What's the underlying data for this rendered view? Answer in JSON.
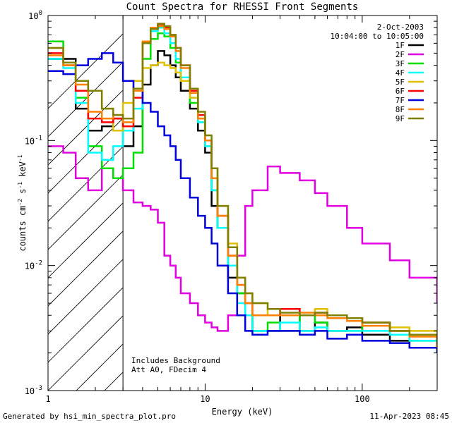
{
  "chart_data": {
    "type": "line",
    "title": "Count Spectra for RHESSI Front Segments",
    "xlabel": "Energy (keV)",
    "ylabel_main": "counts cm",
    "ylabel_exp1": "-2",
    "ylabel_s": " s",
    "ylabel_exp2": "-1",
    "ylabel_kev": " keV",
    "ylabel_exp3": "-1",
    "x_scale": "log",
    "y_scale": "log",
    "xlim": [
      1,
      300
    ],
    "ylim": [
      0.001,
      1
    ],
    "x_ticks": [
      {
        "value": 1,
        "label": "1"
      },
      {
        "value": 10,
        "label": "10"
      },
      {
        "value": 100,
        "label": "100"
      }
    ],
    "y_ticks": [
      {
        "value": 1,
        "base": "10",
        "exp": "0"
      },
      {
        "value": 0.1,
        "base": "10",
        "exp": "-1"
      },
      {
        "value": 0.01,
        "base": "10",
        "exp": "-2"
      },
      {
        "value": 0.001,
        "base": "10",
        "exp": "-3"
      }
    ],
    "hatch_region_kev": [
      1,
      3
    ],
    "legend": {
      "position": "top-right",
      "date": "2-Oct-2003",
      "time_range": "10:04:00 to 10:05:00"
    },
    "annotations": [
      "Includes Background",
      "Att A0, FDecim 4"
    ],
    "series": [
      {
        "name": "1F",
        "color": "#000000",
        "x": [
          1,
          1.25,
          1.5,
          1.8,
          2.2,
          2.6,
          3,
          3.5,
          4,
          4.5,
          5,
          5.5,
          6,
          6.5,
          7,
          8,
          9,
          10,
          11,
          12,
          14,
          16,
          18,
          20,
          25,
          30,
          40,
          50,
          60,
          80,
          100,
          150,
          200,
          300
        ],
        "y": [
          0.45,
          0.45,
          0.18,
          0.12,
          0.13,
          0.15,
          0.09,
          0.13,
          0.28,
          0.4,
          0.52,
          0.48,
          0.4,
          0.32,
          0.25,
          0.18,
          0.12,
          0.08,
          0.03,
          0.02,
          0.008,
          0.006,
          0.004,
          0.003,
          0.003,
          0.004,
          0.003,
          0.0035,
          0.003,
          0.0032,
          0.0028,
          0.0025,
          0.0022,
          0.002
        ]
      },
      {
        "name": "2F",
        "color": "#e000e0",
        "x": [
          1,
          1.25,
          1.5,
          1.8,
          2.2,
          2.6,
          3,
          3.5,
          4,
          4.5,
          5,
          5.5,
          6,
          6.5,
          7,
          8,
          9,
          10,
          11,
          12,
          14,
          16,
          18,
          20,
          25,
          30,
          40,
          50,
          60,
          80,
          100,
          150,
          200,
          300
        ],
        "y": [
          0.09,
          0.08,
          0.05,
          0.04,
          0.06,
          0.05,
          0.04,
          0.032,
          0.03,
          0.028,
          0.022,
          0.012,
          0.01,
          0.008,
          0.006,
          0.005,
          0.004,
          0.0035,
          0.0032,
          0.003,
          0.004,
          0.012,
          0.03,
          0.04,
          0.062,
          0.055,
          0.048,
          0.038,
          0.03,
          0.02,
          0.015,
          0.011,
          0.008,
          0.005
        ]
      },
      {
        "name": "3F",
        "color": "#00e000",
        "x": [
          1,
          1.25,
          1.5,
          1.8,
          2.2,
          2.6,
          3,
          3.5,
          4,
          4.5,
          5,
          5.5,
          6,
          6.5,
          7,
          8,
          9,
          10,
          11,
          12,
          14,
          16,
          18,
          20,
          25,
          30,
          40,
          50,
          60,
          80,
          100,
          150,
          200,
          300
        ],
        "y": [
          0.62,
          0.42,
          0.22,
          0.09,
          0.06,
          0.05,
          0.06,
          0.08,
          0.45,
          0.65,
          0.72,
          0.68,
          0.55,
          0.42,
          0.3,
          0.2,
          0.14,
          0.09,
          0.04,
          0.02,
          0.01,
          0.006,
          0.004,
          0.003,
          0.0035,
          0.003,
          0.004,
          0.0035,
          0.003,
          0.003,
          0.0035,
          0.003,
          0.0025,
          0.002
        ]
      },
      {
        "name": "4F",
        "color": "#00ffff",
        "x": [
          1,
          1.25,
          1.5,
          1.8,
          2.2,
          2.6,
          3,
          3.5,
          4,
          4.5,
          5,
          5.5,
          6,
          6.5,
          7,
          8,
          9,
          10,
          11,
          12,
          14,
          16,
          18,
          20,
          25,
          30,
          40,
          50,
          60,
          80,
          100,
          150,
          200,
          300
        ],
        "y": [
          0.45,
          0.38,
          0.2,
          0.08,
          0.07,
          0.09,
          0.12,
          0.18,
          0.6,
          0.75,
          0.8,
          0.72,
          0.6,
          0.45,
          0.32,
          0.22,
          0.14,
          0.09,
          0.04,
          0.02,
          0.01,
          0.005,
          0.004,
          0.003,
          0.003,
          0.0035,
          0.003,
          0.0032,
          0.003,
          0.003,
          0.003,
          0.0028,
          0.0025,
          0.002
        ]
      },
      {
        "name": "5F",
        "color": "#e0c000",
        "x": [
          1,
          1.25,
          1.5,
          1.8,
          2.2,
          2.6,
          3,
          3.5,
          4,
          4.5,
          5,
          5.5,
          6,
          6.5,
          7,
          8,
          9,
          10,
          11,
          12,
          14,
          16,
          18,
          20,
          25,
          30,
          40,
          50,
          60,
          80,
          100,
          150,
          200,
          300
        ],
        "y": [
          0.55,
          0.4,
          0.3,
          0.25,
          0.18,
          0.12,
          0.2,
          0.3,
          0.38,
          0.4,
          0.42,
          0.4,
          0.38,
          0.35,
          0.3,
          0.22,
          0.15,
          0.1,
          0.06,
          0.03,
          0.015,
          0.008,
          0.006,
          0.005,
          0.004,
          0.0045,
          0.004,
          0.0045,
          0.004,
          0.0038,
          0.0035,
          0.0032,
          0.003,
          0.0025
        ]
      },
      {
        "name": "6F",
        "color": "#ff0000",
        "x": [
          1,
          1.25,
          1.5,
          1.8,
          2.2,
          2.6,
          3,
          3.5,
          4,
          4.5,
          5,
          5.5,
          6,
          6.5,
          7,
          8,
          9,
          10,
          11,
          12,
          14,
          16,
          18,
          20,
          25,
          30,
          40,
          50,
          60,
          80,
          100,
          150,
          200,
          300
        ],
        "y": [
          0.5,
          0.4,
          0.25,
          0.15,
          0.14,
          0.15,
          0.13,
          0.22,
          0.6,
          0.78,
          0.85,
          0.8,
          0.7,
          0.55,
          0.4,
          0.25,
          0.16,
          0.1,
          0.05,
          0.025,
          0.012,
          0.007,
          0.005,
          0.004,
          0.004,
          0.0045,
          0.004,
          0.0042,
          0.004,
          0.0038,
          0.0035,
          0.003,
          0.0028,
          0.0022
        ]
      },
      {
        "name": "7F",
        "color": "#0000dd",
        "x": [
          1,
          1.25,
          1.5,
          1.8,
          2.2,
          2.6,
          3,
          3.5,
          4,
          4.5,
          5,
          5.5,
          6,
          6.5,
          7,
          8,
          9,
          10,
          11,
          12,
          14,
          16,
          18,
          20,
          25,
          30,
          40,
          50,
          60,
          80,
          100,
          150,
          200,
          300
        ],
        "y": [
          0.36,
          0.34,
          0.4,
          0.45,
          0.5,
          0.42,
          0.3,
          0.25,
          0.2,
          0.17,
          0.13,
          0.11,
          0.09,
          0.07,
          0.05,
          0.035,
          0.025,
          0.02,
          0.015,
          0.01,
          0.006,
          0.004,
          0.003,
          0.0028,
          0.003,
          0.003,
          0.0028,
          0.003,
          0.0026,
          0.0028,
          0.0025,
          0.0024,
          0.0022,
          0.002
        ]
      },
      {
        "name": "8F",
        "color": "#ff8000",
        "x": [
          1,
          1.25,
          1.5,
          1.8,
          2.2,
          2.6,
          3,
          3.5,
          4,
          4.5,
          5,
          5.5,
          6,
          6.5,
          7,
          8,
          9,
          10,
          11,
          12,
          14,
          16,
          18,
          20,
          25,
          30,
          40,
          50,
          60,
          80,
          100,
          150,
          200,
          300
        ],
        "y": [
          0.48,
          0.4,
          0.28,
          0.17,
          0.15,
          0.16,
          0.14,
          0.25,
          0.62,
          0.8,
          0.82,
          0.78,
          0.68,
          0.52,
          0.38,
          0.24,
          0.15,
          0.1,
          0.05,
          0.025,
          0.012,
          0.007,
          0.005,
          0.004,
          0.004,
          0.004,
          0.0042,
          0.004,
          0.0038,
          0.0036,
          0.0033,
          0.003,
          0.0027,
          0.0022
        ]
      },
      {
        "name": "9F",
        "color": "#808000",
        "x": [
          1,
          1.25,
          1.5,
          1.8,
          2.2,
          2.6,
          3,
          3.5,
          4,
          4.5,
          5,
          5.5,
          6,
          6.5,
          7,
          8,
          9,
          10,
          11,
          12,
          14,
          16,
          18,
          20,
          25,
          30,
          40,
          50,
          60,
          80,
          100,
          150,
          200,
          300
        ],
        "y": [
          0.55,
          0.42,
          0.3,
          0.25,
          0.18,
          0.16,
          0.15,
          0.26,
          0.6,
          0.78,
          0.86,
          0.82,
          0.7,
          0.55,
          0.4,
          0.26,
          0.17,
          0.11,
          0.06,
          0.03,
          0.014,
          0.008,
          0.006,
          0.005,
          0.0045,
          0.0042,
          0.004,
          0.0042,
          0.004,
          0.0038,
          0.0035,
          0.003,
          0.0028,
          0.0023
        ]
      }
    ]
  },
  "footer": {
    "generated_by": "Generated by hsi_min_spectra_plot.pro",
    "timestamp": "11-Apr-2023 08:45"
  }
}
